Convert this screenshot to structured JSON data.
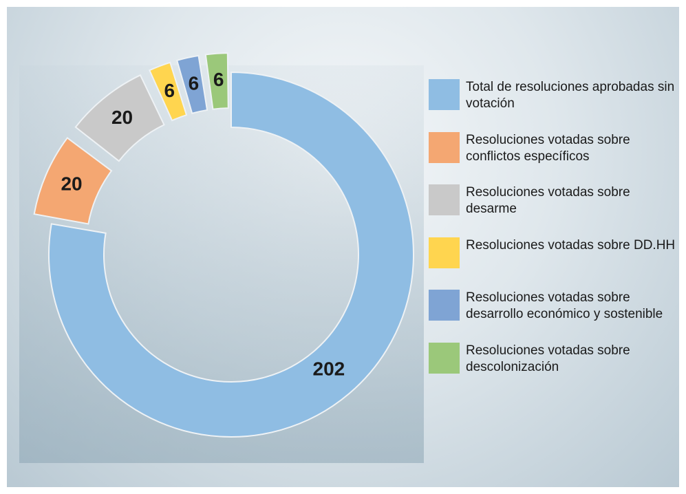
{
  "chart_data": {
    "type": "donut",
    "categories": [
      "Total de resoluciones aprobadas sin votación",
      "Resoluciones votadas sobre conflictos específicos",
      "Resoluciones votadas sobre desarme",
      "Resoluciones votadas sobre DD.HH",
      "Resoluciones votadas sobre desarrollo económico y sostenible",
      "Resoluciones votadas sobre descolonización"
    ],
    "values": [
      202,
      20,
      20,
      6,
      6,
      6
    ],
    "colors": [
      "#8fbde3",
      "#f4a772",
      "#c9c9c9",
      "#ffd54f",
      "#7fa4d4",
      "#9bc87a"
    ],
    "legend": "right"
  }
}
